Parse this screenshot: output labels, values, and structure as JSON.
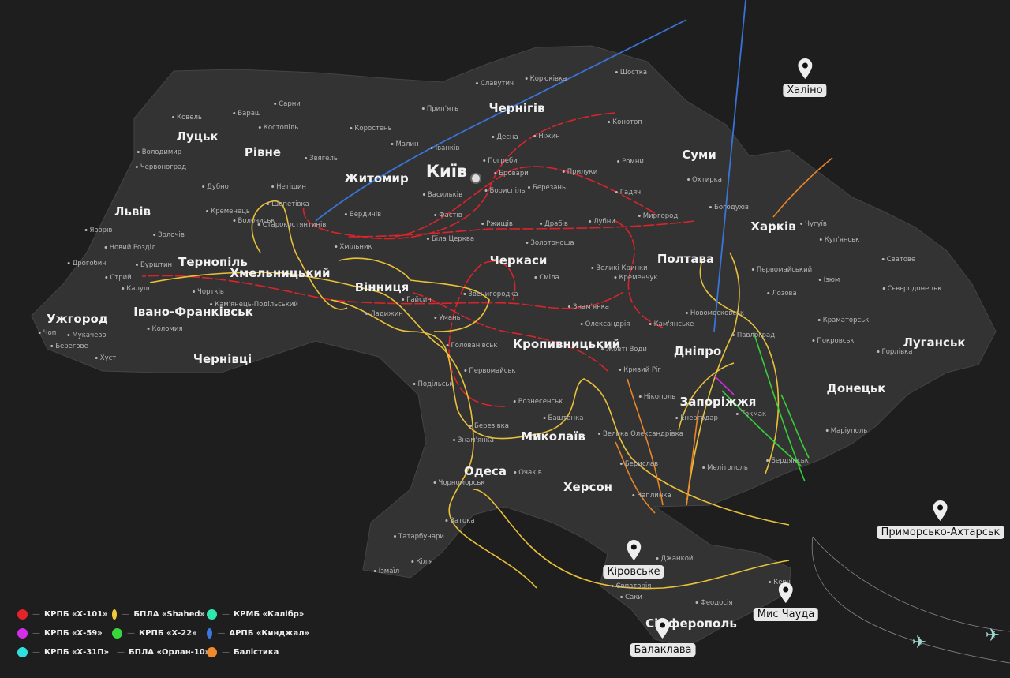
{
  "colors": {
    "background": "#1e1e1e",
    "land": "#333333",
    "x101": "#e3242b",
    "shahed": "#f3c93a",
    "kalibr": "#2ee8b0",
    "x59": "#d42ee8",
    "x22": "#38d83a",
    "kinzhal": "#3a78e0",
    "x31p": "#2fe0e0",
    "orlan": "#e84a8a",
    "ballistic": "#f08a2a"
  },
  "major_cities": [
    "Київ",
    "Чернігів",
    "Житомир",
    "Суми",
    "Луцьк",
    "Рівне",
    "Львів",
    "Тернопіль",
    "Хмельницький",
    "Вінниця",
    "Черкаси",
    "Полтава",
    "Харків",
    "Ужгород",
    "Івано-Франківськ",
    "Чернівці",
    "Кропивницький",
    "Дніпро",
    "Запоріжжя",
    "Донецьк",
    "Луганськ",
    "Миколаїв",
    "Одеса",
    "Херсон",
    "Сімферополь"
  ],
  "minor_towns": [
    "Ковель",
    "Володимир",
    "Червоноград",
    "Яворів",
    "Золочів",
    "Новий Розділ",
    "Дрогобич",
    "Стрий",
    "Калуш",
    "Бурштин",
    "Чортків",
    "Кам'янець-Подільський",
    "Коломия",
    "Чоп",
    "Мукачево",
    "Берегове",
    "Хуст",
    "Дубно",
    "Кременець",
    "Вараш",
    "Сарни",
    "Костопіль",
    "Звягель",
    "Коростень",
    "Малин",
    "Прип'ять",
    "Славутич",
    "Корюківка",
    "Шостка",
    "Іванків",
    "Нетішин",
    "Шепетівка",
    "Старокостянтинів",
    "Бердичів",
    "Хмільник",
    "Волочиськ",
    "Васильків",
    "Фастів",
    "Біла Церква",
    "Бориспіль",
    "Бровари",
    "Погреби",
    "Березань",
    "Ніжин",
    "Десна",
    "Прилуки",
    "Конотоп",
    "Ромни",
    "Охтирка",
    "Гадяч",
    "Лубни",
    "Миргород",
    "Богодухів",
    "Чугуїв",
    "Куп'янськ",
    "Сватове",
    "Первомайський",
    "Ізюм",
    "Лозова",
    "Краматорськ",
    "Сєвєродонецьк",
    "Покровськ",
    "Горлівка",
    "Маріуполь",
    "Павлоград",
    "Новомосковськ",
    "Кам'янське",
    "Кременчук",
    "Олександрія",
    "Знам'янка",
    "Жовті Води",
    "Кривий Ріг",
    "Нікополь",
    "Енергодар",
    "Токмак",
    "Мелітополь",
    "Бердянськ",
    "Велика Олександрівка",
    "Берислав",
    "Чаплинка",
    "Джанкой",
    "Євпаторія",
    "Саки",
    "Феодосія",
    "Керч",
    "Вознесенськ",
    "Баштанка",
    "Березівка",
    "Первомайськ",
    "Подільськ",
    "Голованівськ",
    "Умань",
    "Гайсин",
    "Ладижин",
    "Звенигородка",
    "Золотоноша",
    "Сміла",
    "Ржищів",
    "Драбів",
    "Великі Кринки",
    "Очаків",
    "Чорноморськ",
    "Затока",
    "Татарбунари",
    "Ізмаїл",
    "Кілія",
    "Знам'янка"
  ],
  "pins": [
    "Халіно",
    "Приморсько-Ахтарськ",
    "Кіровське",
    "Мис Чауда",
    "Балаклава"
  ],
  "legend": [
    {
      "label": "КРПБ «Х-101»",
      "color": "#e3242b"
    },
    {
      "label": "БПЛА «Shahed»",
      "color": "#f3c93a"
    },
    {
      "label": "КРМБ «Калібр»",
      "color": "#2ee8b0"
    },
    {
      "label": "КРПБ «Х-59»",
      "color": "#d42ee8"
    },
    {
      "label": "КРПБ «Х-22»",
      "color": "#38d83a"
    },
    {
      "label": "АРПБ «Кинджал»",
      "color": "#3a78e0"
    },
    {
      "label": "КРПБ «Х-31П»",
      "color": "#2fe0e0"
    },
    {
      "label": "БПЛА «Орлан-10»",
      "color": "#e84a8a"
    },
    {
      "label": "Балістика",
      "color": "#f08a2a"
    }
  ],
  "legend_dash": "—",
  "icons": {
    "pin": "map-pin-icon",
    "aircraft": "bomber-aircraft-icon",
    "capital": "capital-marker-icon"
  }
}
